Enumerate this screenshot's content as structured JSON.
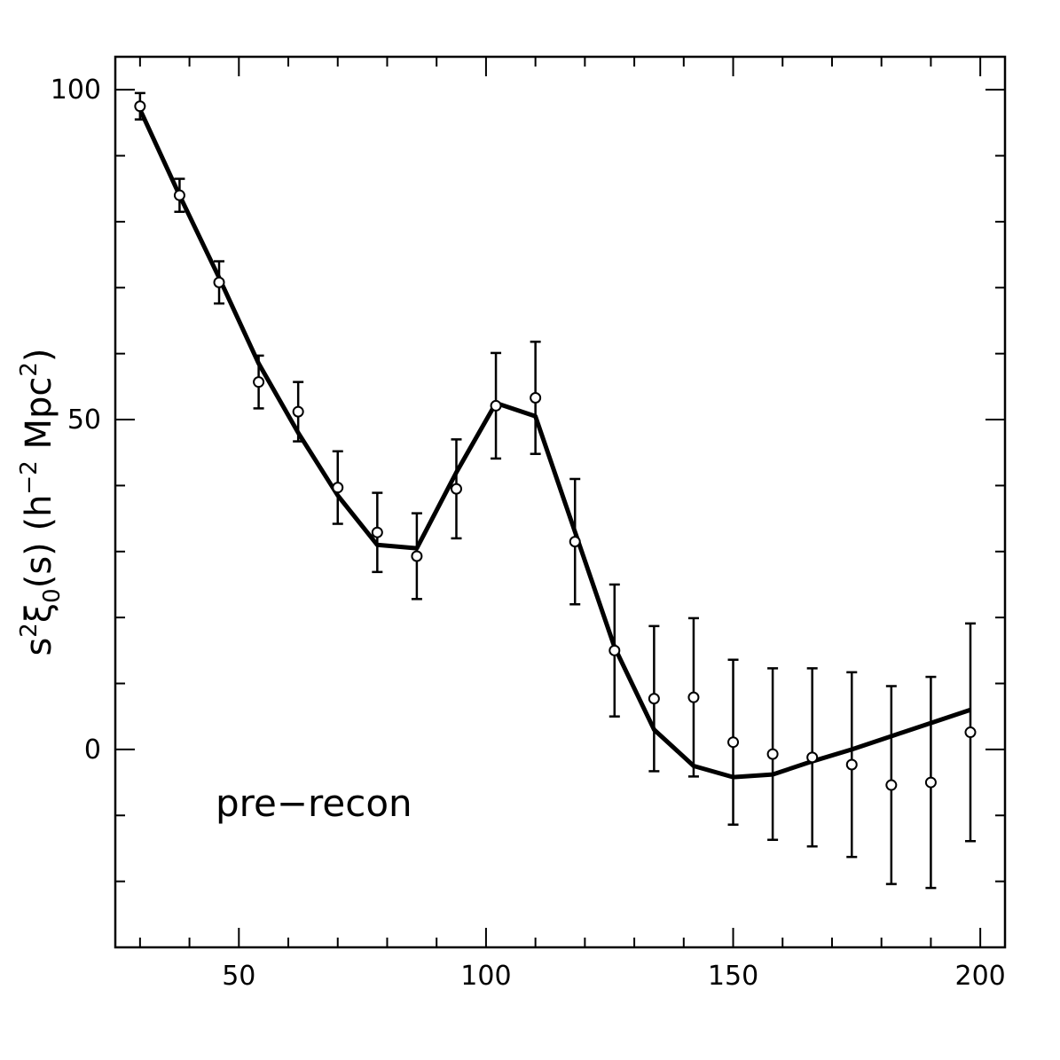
{
  "chart_data": {
    "type": "scatter",
    "title": "",
    "xlabel": "",
    "ylabel": {
      "text": "s",
      "sup": "2",
      "symbol": "ξ",
      "sub": "0",
      "after": "(s)  (h",
      "exp": "−2",
      "unit": " Mpc",
      "unit_exp": "2",
      "close": ")"
    },
    "xlim": [
      25,
      205
    ],
    "ylim": [
      -30,
      105
    ],
    "x_ticks": [
      50,
      100,
      150,
      200
    ],
    "y_ticks": [
      0,
      50,
      100
    ],
    "x_tick_labels": [
      "50",
      "100",
      "150",
      "200"
    ],
    "y_tick_labels": [
      "0",
      "50",
      "100"
    ],
    "grid": false,
    "annotation": "pre−recon",
    "series": [
      {
        "kind": "points-with-errorbars",
        "x": [
          30,
          38,
          46,
          54,
          62,
          70,
          78,
          86,
          94,
          102,
          110,
          118,
          126,
          134,
          142,
          150,
          158,
          166,
          174,
          182,
          190,
          198
        ],
        "y": [
          97.5,
          84.0,
          70.8,
          55.7,
          51.2,
          39.7,
          32.9,
          29.3,
          39.5,
          52.1,
          53.3,
          31.5,
          15.0,
          7.7,
          7.9,
          1.1,
          -0.7,
          -1.2,
          -2.3,
          -5.4,
          -5.0,
          2.6
        ],
        "yerr": [
          2.0,
          2.5,
          3.2,
          4.0,
          4.5,
          5.5,
          6.0,
          6.5,
          7.5,
          8.0,
          8.5,
          9.5,
          10.0,
          11.0,
          12.0,
          12.5,
          13.0,
          13.5,
          14.0,
          15.0,
          16.0,
          16.5
        ]
      },
      {
        "kind": "model-line",
        "x": [
          30,
          38,
          46,
          54,
          62,
          70,
          78,
          86,
          94,
          102,
          110,
          118,
          126,
          134,
          142,
          150,
          158,
          166,
          174,
          182,
          190,
          198
        ],
        "y": [
          97.0,
          84.0,
          71.5,
          58.5,
          48.0,
          38.5,
          31.0,
          30.5,
          42.0,
          52.5,
          50.5,
          33.0,
          15.5,
          3.0,
          -2.5,
          -4.2,
          -3.8,
          -1.8,
          0.0,
          2.0,
          4.0,
          6.0
        ]
      }
    ]
  }
}
